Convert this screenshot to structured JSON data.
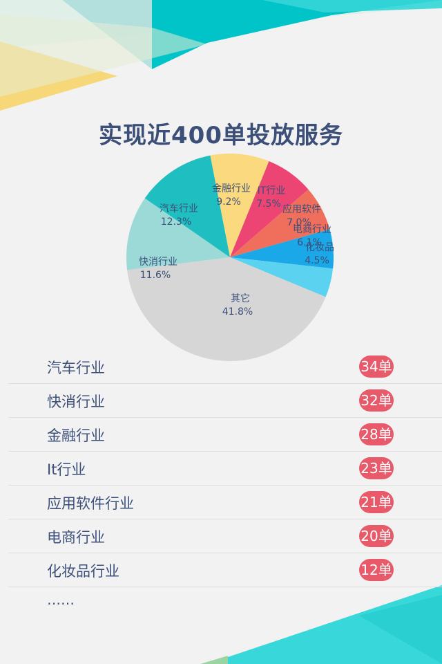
{
  "page": {
    "title": "实现近400单投放服务"
  },
  "colors": {
    "title": "#3c4f78",
    "badge": "#e8596a",
    "teal_decor": "#00c4c8",
    "yellow_decor": "#f7d879"
  },
  "chart_data": {
    "type": "pie",
    "title": "实现近400单投放服务",
    "slices": [
      {
        "label": "金融行业",
        "value": 9.2,
        "pct_label": "9.2%",
        "color": "#fad97f"
      },
      {
        "label": "IT行业",
        "value": 7.5,
        "pct_label": "7.5%",
        "color": "#ec4473"
      },
      {
        "label": "应用软件",
        "value": 7.0,
        "pct_label": "7.0%",
        "color": "#f06e5c"
      },
      {
        "label": "电商行业",
        "value": 6.1,
        "pct_label": "6.1%",
        "color": "#1aa8e8"
      },
      {
        "label": "化妆品",
        "value": 4.5,
        "pct_label": "4.5%",
        "color": "#5ad2f0"
      },
      {
        "label": "其它",
        "value": 41.8,
        "pct_label": "41.8%",
        "color": "#d6d6d6"
      },
      {
        "label": "快消行业",
        "value": 11.6,
        "pct_label": "11.6%",
        "color": "#9cdad7"
      },
      {
        "label": "汽车行业",
        "value": 12.3,
        "pct_label": "12.3%",
        "color": "#1fbec0"
      }
    ]
  },
  "list": {
    "items": [
      {
        "label": "汽车行业",
        "badge": "34单"
      },
      {
        "label": "快消行业",
        "badge": "32单"
      },
      {
        "label": "金融行业",
        "badge": "28单"
      },
      {
        "label": "It行业",
        "badge": "23单"
      },
      {
        "label": "应用软件行业",
        "badge": "21单"
      },
      {
        "label": "电商行业",
        "badge": "20单"
      },
      {
        "label": "化妆品行业",
        "badge": "12单"
      }
    ],
    "more": "……"
  }
}
